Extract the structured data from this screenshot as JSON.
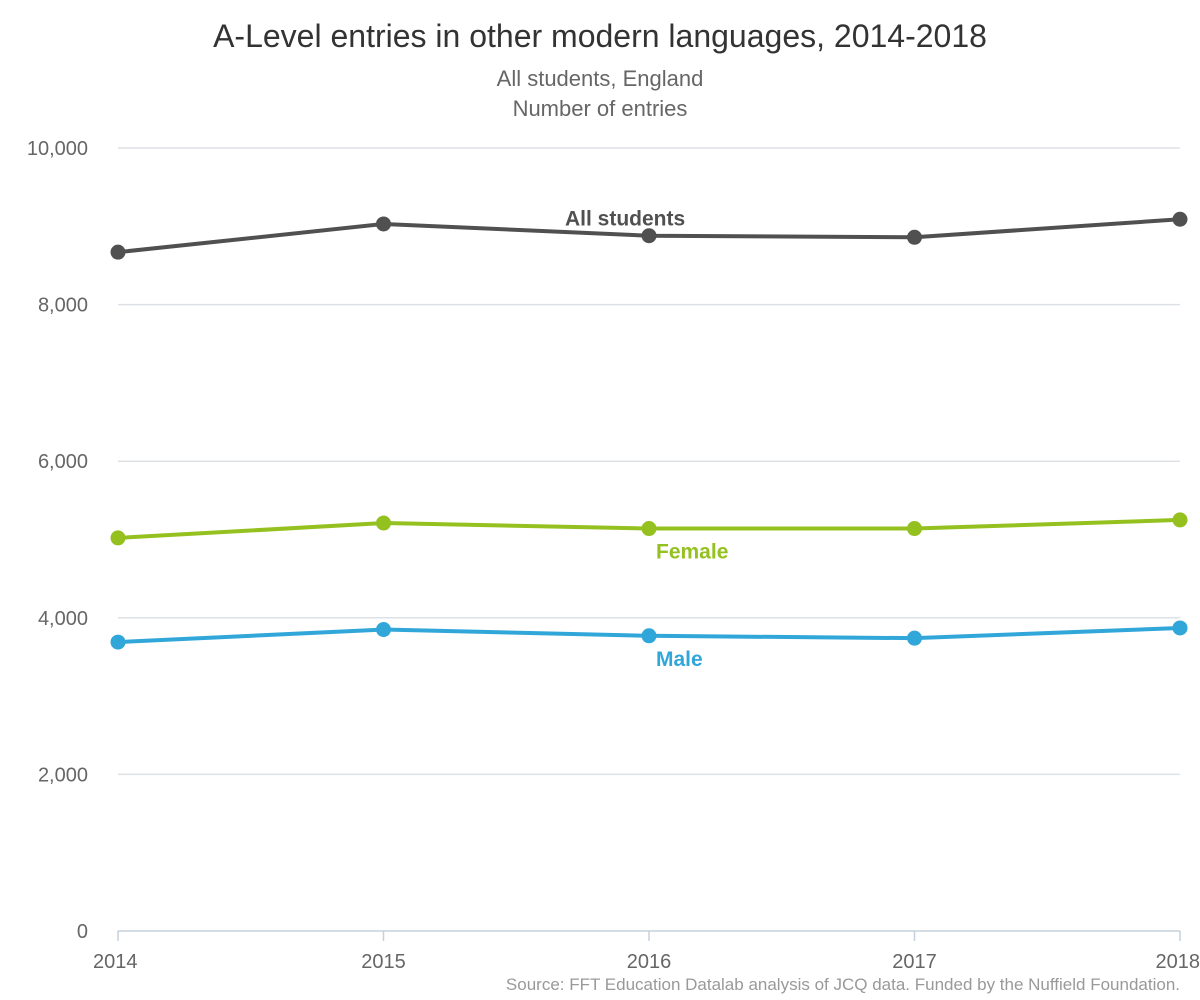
{
  "chart_data": {
    "type": "line",
    "title": "A-Level entries in other modern languages, 2014-2018",
    "subtitle_lines": [
      "All students, England",
      "Number of entries"
    ],
    "xlabel": "",
    "ylabel": "",
    "x": [
      "2014",
      "2015",
      "2016",
      "2017",
      "2018"
    ],
    "ylim": [
      0,
      10000
    ],
    "y_ticks": [
      0,
      2000,
      4000,
      6000,
      8000,
      10000
    ],
    "y_tick_labels": [
      "0",
      "2,000",
      "4,000",
      "6,000",
      "8,000",
      "10,000"
    ],
    "grid": true,
    "series": [
      {
        "name": "All students",
        "color": "#505050",
        "values": [
          8670,
          9030,
          8880,
          8860,
          9090
        ]
      },
      {
        "name": "Female",
        "color": "#94c11f",
        "values": [
          5020,
          5210,
          5140,
          5140,
          5250
        ]
      },
      {
        "name": "Male",
        "color": "#30a6d9",
        "values": [
          3690,
          3850,
          3770,
          3740,
          3870
        ]
      }
    ],
    "source": "Source: FFT Education Datalab analysis of JCQ data. Funded by the Nuffield Foundation."
  }
}
